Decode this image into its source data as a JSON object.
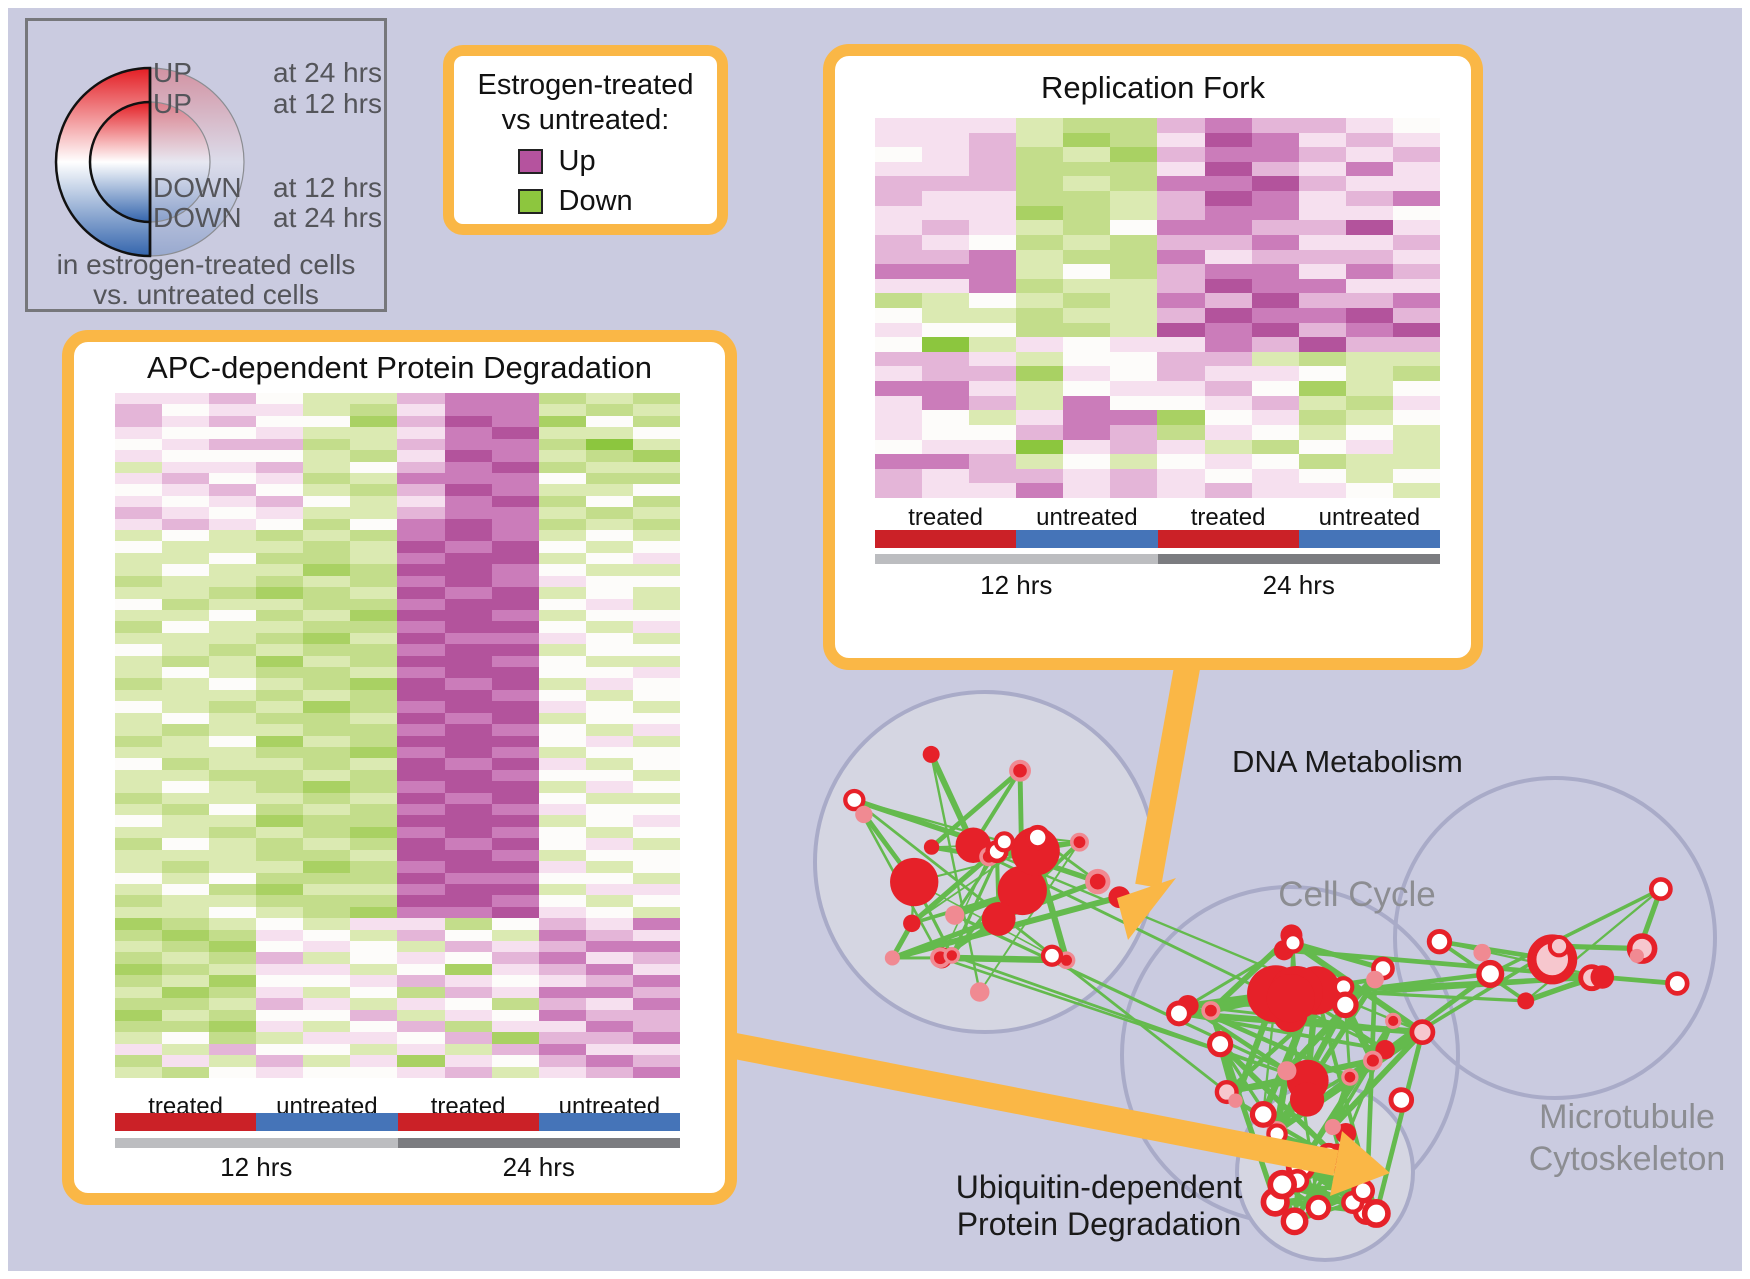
{
  "figure": {
    "background": "#cacbe0",
    "accent_orange": "#fab746",
    "frame_color": "#ffffff"
  },
  "ring_legend": {
    "entries": [
      {
        "direction": "UP",
        "time": "at 24 hrs"
      },
      {
        "direction": "UP",
        "time": "at 12 hrs"
      },
      {
        "direction": "DOWN",
        "time": "at 12 hrs"
      },
      {
        "direction": "DOWN",
        "time": "at 24 hrs"
      }
    ],
    "caption_line1": "in estrogen-treated cells",
    "caption_line2": "vs. untreated cells",
    "gradient_top": "#e31e24",
    "gradient_mid": "#ffffff",
    "gradient_bottom": "#3465ad"
  },
  "color_legend": {
    "title_line1": "Estrogen-treated",
    "title_line2": "vs untreated:",
    "items": [
      {
        "label": "Up",
        "color": "#b5539e"
      },
      {
        "label": "Down",
        "color": "#8dc63e"
      }
    ]
  },
  "chart_data": [
    {
      "id": "apc",
      "type": "heatmap",
      "title": "APC-dependent Protein Degradation",
      "condition_groups": [
        {
          "label": "treated",
          "color": "#cb2127"
        },
        {
          "label": "untreated",
          "color": "#4574b8"
        },
        {
          "label": "treated",
          "color": "#cb2127"
        },
        {
          "label": "untreated",
          "color": "#4574b8"
        }
      ],
      "time_groups": [
        {
          "label": "12 hrs",
          "color": "#bcbdc0"
        },
        {
          "label": "24 hrs",
          "color": "#7b7c80"
        }
      ],
      "cols_per_group": 3,
      "value_scale": "0 = strong down (green), 4 = no change (white), 8 = strong up (magenta)",
      "palette": [
        "#8cc63e",
        "#a9d163",
        "#c3dd8b",
        "#dbeab2",
        "#fdfcfa",
        "#f6e0ef",
        "#e4b5d8",
        "#cb7cba",
        "#b3539c"
      ],
      "matrix": [
        "556433677232",
        "645532577323",
        "656441687142",
        "544533578334",
        "456623677203",
        "544432587321",
        "355634678233",
        "564523777422",
        "456432687334",
        "545643578242",
        "654533677323",
        "565424787232",
        "343232787343",
        "433323878434",
        "334223788345",
        "343312887433",
        "233232787544",
        "332123878343",
        "423322788453",
        "334231887344",
        "243322788435",
        "333213877543",
        "432322788344",
        "323132887433",
        "343223788445",
        "234321878354",
        "333232887434",
        "432312788543",
        "343223878344",
        "323322787435",
        "234132888453",
        "333221787344",
        "423323878534",
        "332232887443",
        "343212788354",
        "233323878433",
        "324232787544",
        "433122888345",
        "332321787434",
        "243232878453",
        "333223887344",
        "323312788534",
        "434222877443",
        "342133788355",
        "233222887434",
        "334321778543",
        "123435524657",
        "212543643765",
        "321454365677",
        "232634546756",
        "123553415675",
        "231445654567",
        "312534265776",
        "223653542657",
        "132446354766",
        "221534625576",
        "342355461667",
        "536443536755",
        "253635154676",
        "324544563567"
      ]
    },
    {
      "id": "repfork",
      "type": "heatmap",
      "title": "Replication Fork",
      "condition_groups": [
        {
          "label": "treated",
          "color": "#cb2127"
        },
        {
          "label": "untreated",
          "color": "#4574b8"
        },
        {
          "label": "treated",
          "color": "#cb2127"
        },
        {
          "label": "untreated",
          "color": "#4574b8"
        }
      ],
      "time_groups": [
        {
          "label": "12 hrs",
          "color": "#bcbdc0"
        },
        {
          "label": "24 hrs",
          "color": "#7b7c80"
        }
      ],
      "cols_per_group": 3,
      "value_scale": "0 = strong down (green), 4 = no change (white), 8 = strong up (magenta)",
      "palette": [
        "#8cc63e",
        "#a9d163",
        "#c3dd8b",
        "#dbeab2",
        "#fdfcfa",
        "#f6e0ef",
        "#e4b5d8",
        "#cb7cba",
        "#b3539c"
      ],
      "matrix": [
        "555322676654",
        "556312587565",
        "456231677656",
        "556222586575",
        "666232778655",
        "655223687567",
        "555123677554",
        "565324776685",
        "654232667556",
        "667322756665",
        "777342677576",
        "557233687755",
        "234323768667",
        "433233687786",
        "544223878678",
        "403545576866",
        "665344663233",
        "566154655432",
        "775345564134",
        "576374456325",
        "543577145234",
        "544676254343",
        "455056532453",
        "776343454233",
        "656656545434",
        "655756565543"
      ]
    }
  ],
  "network": {
    "edge_color": "#64ba4d",
    "node_red": "#e62129",
    "node_pink": "#f08a92",
    "node_light_pink": "#f6c7ce",
    "node_white": "#ffffff",
    "cluster_fill": "#d5d6e2",
    "cluster_stroke": "#a9abc8",
    "clusters": [
      {
        "id": "dna",
        "label": "DNA Metabolism",
        "label_color": "#1a1a1a"
      },
      {
        "id": "cellcycle",
        "label": "Cell Cycle",
        "label_color": "#8c8d92"
      },
      {
        "id": "microtubule",
        "label_line1": "Microtubule",
        "label_line2": "Cytoskeleton",
        "label_color": "#8c8d92"
      },
      {
        "id": "ubiquitin",
        "label_line1": "Ubiquitin-dependent",
        "label_line2": "Protein Degradation",
        "label_color": "#1a1a1a"
      }
    ]
  }
}
